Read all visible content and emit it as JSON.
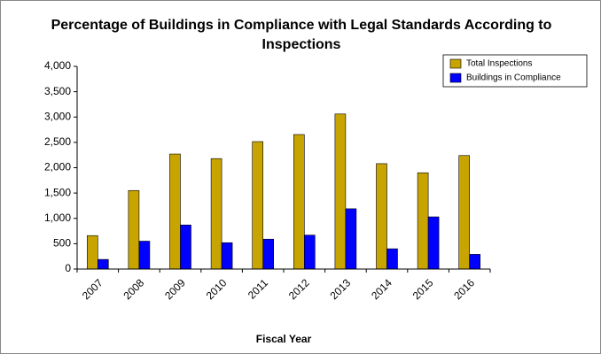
{
  "chart_data": {
    "type": "bar",
    "title": "Percentage of Buildings in Compliance with Legal Standards According to Inspections",
    "x_label": "Fiscal Year",
    "categories": [
      "2007",
      "2008",
      "2009",
      "2010",
      "2011",
      "2012",
      "2013",
      "2014",
      "2015",
      "2016"
    ],
    "series": [
      {
        "name": "Total Inspections",
        "color": "#c8a400",
        "values": [
          660,
          1550,
          2270,
          2180,
          2515,
          2655,
          3060,
          2080,
          1900,
          2240
        ]
      },
      {
        "name": "Buildings in Compliance",
        "color": "#0000ff",
        "values": [
          190,
          550,
          870,
          520,
          590,
          670,
          1190,
          400,
          1030,
          290
        ]
      }
    ],
    "ylim": [
      0,
      4000
    ],
    "yticks": [
      0,
      500,
      {
        "value": 1000,
        "label": "1,000"
      },
      {
        "value": 1500,
        "label": "1,500"
      },
      {
        "value": 2000,
        "label": "2,000"
      },
      {
        "value": 2500,
        "label": "2,500"
      },
      {
        "value": 3000,
        "label": "3,000"
      },
      {
        "value": 3500,
        "label": "3,500"
      },
      {
        "value": 4000,
        "label": "4,000"
      }
    ],
    "legend": "top-right"
  }
}
